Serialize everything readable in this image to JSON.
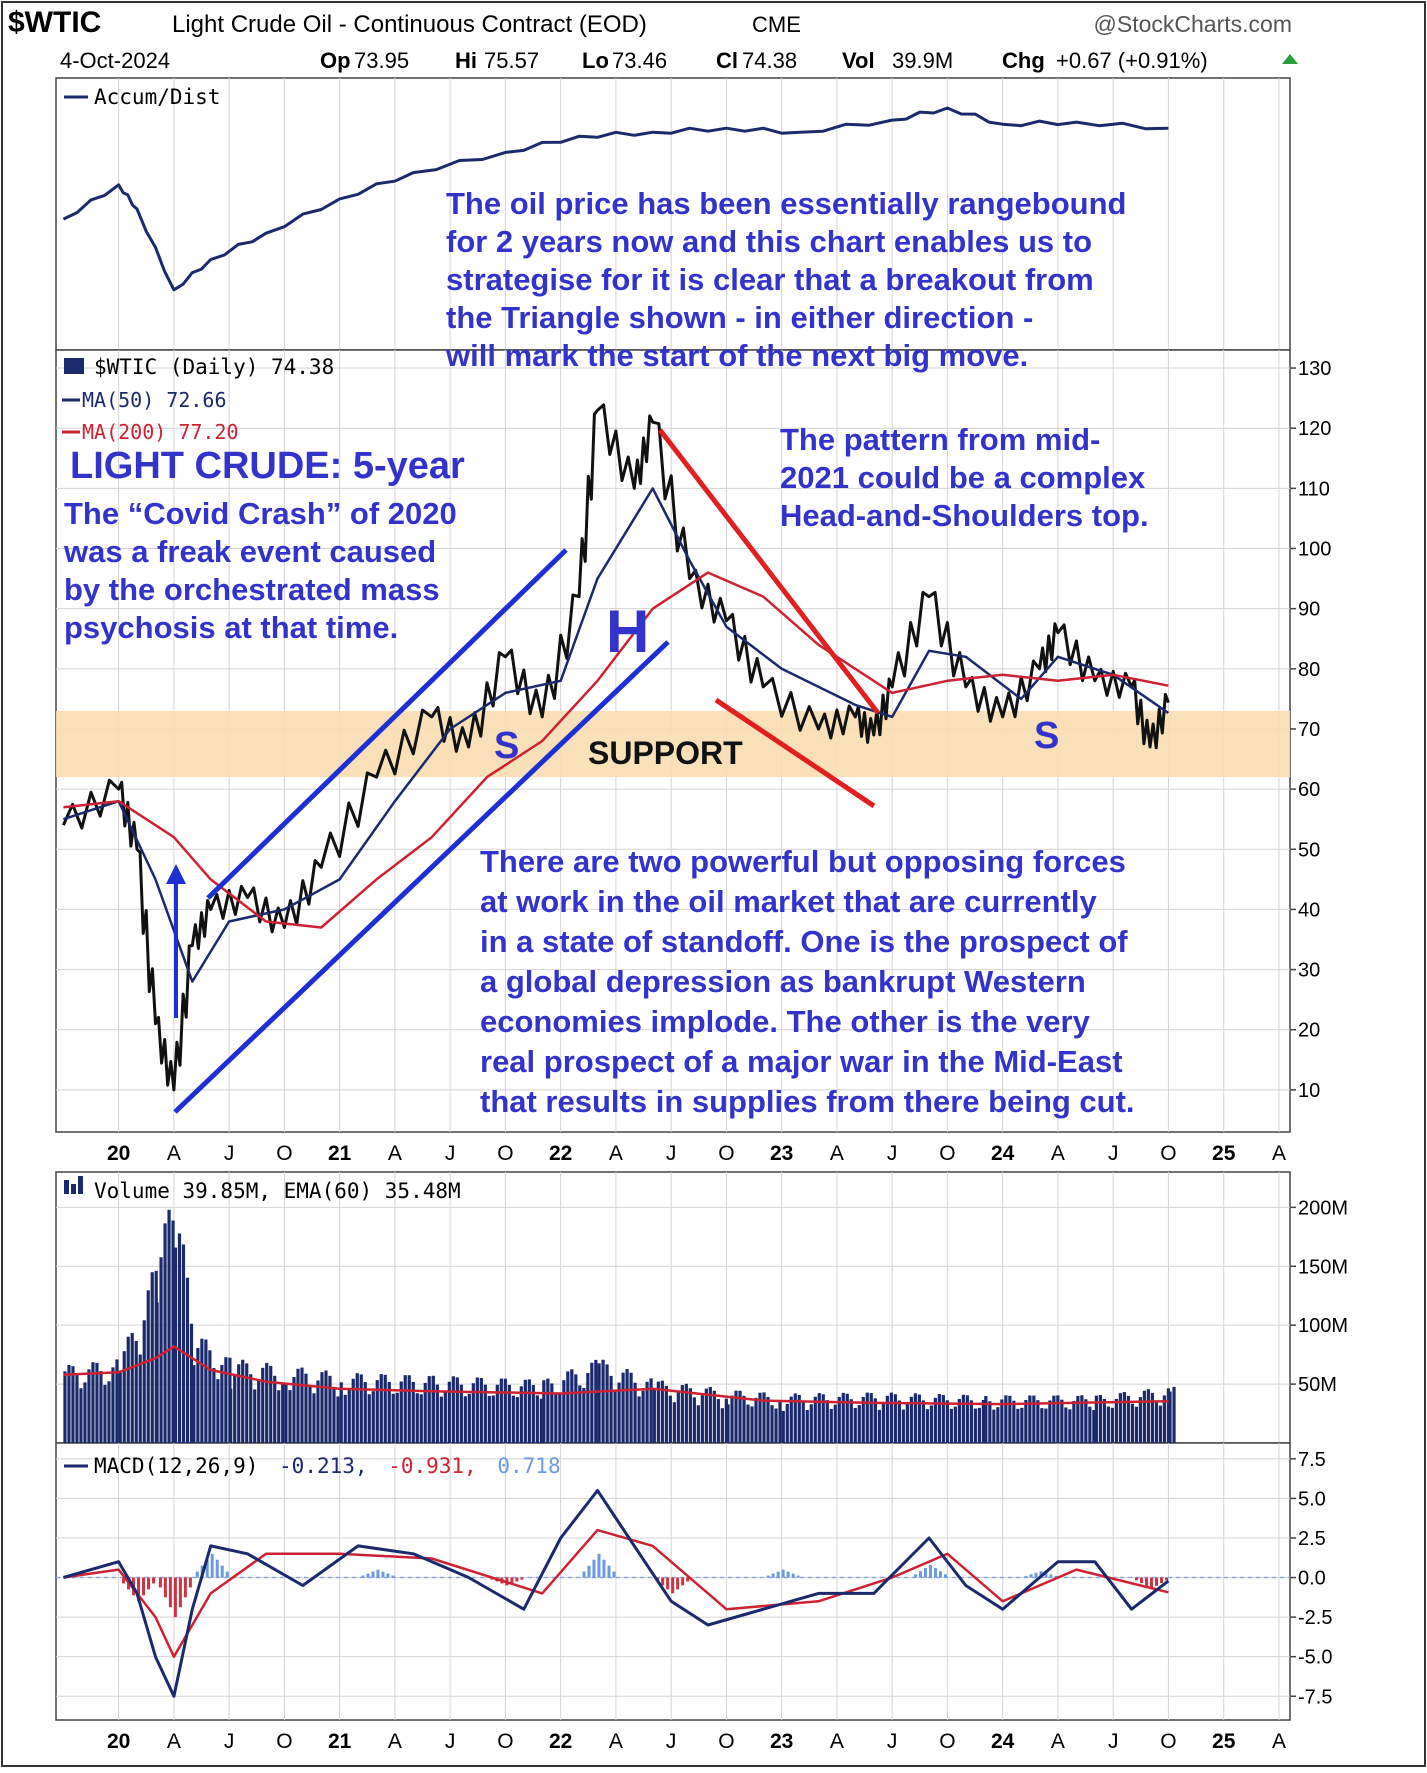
{
  "header": {
    "symbol": "$WTIC",
    "title": "Light Crude Oil - Continuous Contract (EOD)",
    "exchange": "CME",
    "source": "@StockCharts.com",
    "date": "4-Oct-2024",
    "op_label": "Op",
    "op": "73.95",
    "hi_label": "Hi",
    "hi": "75.57",
    "lo_label": "Lo",
    "lo": "73.46",
    "cl_label": "Cl",
    "cl": "74.38",
    "vol_label": "Vol",
    "vol": "39.9M",
    "chg_label": "Chg",
    "chg": "+0.67 (+0.91%)"
  },
  "colors": {
    "navy": "#1a2a6c",
    "red": "#cc2233",
    "annotation": "#3333cc",
    "support_band": "#f9ddb0",
    "trend_blue": "#1f2fd6",
    "trend_red": "#e02020"
  },
  "legends": {
    "accum": "Accum/Dist",
    "price": "$WTIC (Daily) 74.38",
    "ma50": "MA(50) 72.66",
    "ma200": "MA(200) 77.20",
    "volume": "Volume 39.85M, EMA(60) 35.48M",
    "macd_prefix": "MACD(12,26,9)",
    "macd_v1": "-0.213,",
    "macd_v2": "-0.931,",
    "macd_v3": "0.718"
  },
  "annotations": {
    "top_box": [
      "The oil price has been essentially rangebound",
      "for 2 years now and this chart enables us to",
      "strategise for it is clear that a breakout from",
      "the Triangle shown - in either direction -",
      "will mark the start of the next big move."
    ],
    "light_crude": "LIGHT CRUDE: 5-year",
    "covid": [
      "The “Covid Crash” of 2020",
      "was a freak event caused",
      "by the orchestrated mass",
      "psychosis at that time."
    ],
    "pattern": [
      "The pattern from mid-",
      "2021 could be a complex",
      "Head-and-Shoulders top."
    ],
    "forces": [
      "There are two powerful but opposing forces",
      "at work in the oil market that are currently",
      "in a state of standoff. One is the prospect of",
      "a global depression as bankrupt Western",
      "economies implode. The other is the very",
      "real prospect of a major war in the Mid-East",
      "that results in supplies from there being cut."
    ],
    "h": "H",
    "s_left": "S",
    "s_right": "S",
    "support": "SUPPORT"
  },
  "chart_data": [
    {
      "type": "line",
      "panel": "accumulation-distribution",
      "series": [
        {
          "name": "Accum/Dist",
          "x": [
            "2019-10",
            "2020-01",
            "2020-02",
            "2020-04",
            "2020-06",
            "2020-09",
            "2021-01",
            "2021-05",
            "2021-10",
            "2022-02",
            "2022-06",
            "2022-10",
            "2023-02",
            "2023-07",
            "2023-10",
            "2024-01",
            "2024-05",
            "2024-10"
          ],
          "values": [
            0.45,
            0.62,
            0.5,
            0.1,
            0.25,
            0.38,
            0.55,
            0.68,
            0.78,
            0.86,
            0.88,
            0.9,
            0.88,
            0.94,
            1.0,
            0.92,
            0.93,
            0.9
          ]
        }
      ]
    },
    {
      "type": "line",
      "panel": "price",
      "x_ticks": [
        "20",
        "A",
        "J",
        "O",
        "21",
        "A",
        "J",
        "O",
        "22",
        "A",
        "J",
        "O",
        "23",
        "A",
        "J",
        "O",
        "24",
        "A",
        "J",
        "O",
        "25",
        "A"
      ],
      "y_ticks": [
        130,
        120,
        110,
        100,
        90,
        80,
        70,
        60,
        50,
        40,
        30,
        20,
        10
      ],
      "ylim": [
        3,
        133
      ],
      "support_band": [
        62,
        73
      ],
      "series": [
        {
          "name": "$WTIC",
          "x": [
            "2019-10",
            "2020-01",
            "2020-02",
            "2020-03",
            "2020-04",
            "2020-05",
            "2020-06",
            "2020-08",
            "2020-10",
            "2020-12",
            "2021-03",
            "2021-06",
            "2021-08",
            "2021-10",
            "2021-12",
            "2022-02",
            "2022-03",
            "2022-05",
            "2022-06",
            "2022-08",
            "2022-10",
            "2022-12",
            "2023-03",
            "2023-05",
            "2023-06",
            "2023-07",
            "2023-09",
            "2023-11",
            "2024-01",
            "2024-03",
            "2024-04",
            "2024-06",
            "2024-08",
            "2024-09",
            "2024-10"
          ],
          "values": [
            54,
            60,
            50,
            21,
            10,
            34,
            40,
            42,
            37,
            47,
            62,
            72,
            67,
            82,
            72,
            92,
            123,
            110,
            121,
            95,
            88,
            77,
            70,
            72,
            69,
            77,
            92,
            77,
            72,
            80,
            86,
            78,
            77,
            67,
            74.38
          ]
        },
        {
          "name": "MA(50) 72.66",
          "x": [
            "2019-10",
            "2020-01",
            "2020-03",
            "2020-05",
            "2020-07",
            "2020-10",
            "2021-01",
            "2021-04",
            "2021-07",
            "2021-10",
            "2022-01",
            "2022-03",
            "2022-06",
            "2022-08",
            "2022-10",
            "2023-01",
            "2023-05",
            "2023-07",
            "2023-09",
            "2023-11",
            "2024-02",
            "2024-04",
            "2024-07",
            "2024-10"
          ],
          "values": [
            55,
            58,
            45,
            28,
            38,
            40,
            45,
            58,
            70,
            76,
            78,
            95,
            110,
            98,
            87,
            80,
            74,
            72,
            83,
            82,
            75,
            82,
            79,
            72.66
          ]
        },
        {
          "name": "MA(200) 77.20",
          "x": [
            "2019-10",
            "2020-01",
            "2020-04",
            "2020-06",
            "2020-09",
            "2020-12",
            "2021-03",
            "2021-06",
            "2021-09",
            "2021-12",
            "2022-03",
            "2022-06",
            "2022-09",
            "2022-12",
            "2023-03",
            "2023-07",
            "2023-10",
            "2024-01",
            "2024-04",
            "2024-07",
            "2024-10"
          ],
          "values": [
            57,
            58,
            52,
            45,
            38,
            37,
            45,
            52,
            62,
            68,
            78,
            90,
            96,
            92,
            84,
            76,
            78,
            79,
            78,
            79,
            77.2
          ]
        }
      ]
    },
    {
      "type": "bar",
      "panel": "volume",
      "y_ticks": [
        "200M",
        "150M",
        "100M",
        "50M"
      ],
      "ylim": [
        0,
        230
      ],
      "series": [
        {
          "name": "Volume",
          "x": [
            "2019-10",
            "2020-01",
            "2020-03",
            "2020-04",
            "2020-05",
            "2020-07",
            "2020-10",
            "2021-01",
            "2021-06",
            "2021-12",
            "2022-03",
            "2022-06",
            "2022-10",
            "2023-01",
            "2023-06",
            "2023-12",
            "2024-06",
            "2024-10"
          ],
          "values": [
            55,
            60,
            130,
            190,
            80,
            60,
            55,
            50,
            48,
            45,
            60,
            45,
            38,
            35,
            36,
            34,
            34,
            40
          ]
        },
        {
          "name": "EMA(60)",
          "x": [
            "2019-10",
            "2020-01",
            "2020-03",
            "2020-04",
            "2020-06",
            "2020-09",
            "2021-01",
            "2021-06",
            "2022-01",
            "2022-06",
            "2022-12",
            "2023-06",
            "2024-01",
            "2024-10"
          ],
          "values": [
            58,
            60,
            72,
            82,
            62,
            52,
            46,
            44,
            42,
            46,
            36,
            34,
            33,
            35.48
          ]
        }
      ]
    },
    {
      "type": "line",
      "panel": "macd",
      "y_ticks": [
        "7.5",
        "5.0",
        "2.5",
        "0.0",
        "-2.5",
        "-5.0",
        "-7.5"
      ],
      "ylim": [
        -9,
        8.5
      ],
      "series": [
        {
          "name": "MACD",
          "x": [
            "2019-10",
            "2020-01",
            "2020-02",
            "2020-03",
            "2020-04",
            "2020-05",
            "2020-06",
            "2020-08",
            "2020-11",
            "2021-02",
            "2021-05",
            "2021-08",
            "2021-11",
            "2022-01",
            "2022-03",
            "2022-05",
            "2022-07",
            "2022-09",
            "2022-12",
            "2023-03",
            "2023-06",
            "2023-09",
            "2023-11",
            "2024-01",
            "2024-04",
            "2024-06",
            "2024-08",
            "2024-10"
          ],
          "values": [
            0,
            1,
            -1,
            -5,
            -7.5,
            -2,
            2,
            1.5,
            -0.5,
            2,
            1.5,
            0,
            -2,
            2.5,
            5.5,
            2,
            -1.5,
            -3,
            -2,
            -1,
            -1,
            2.5,
            -0.5,
            -2,
            1,
            1,
            -2,
            -0.213
          ]
        },
        {
          "name": "Signal",
          "x": [
            "2019-10",
            "2020-01",
            "2020-03",
            "2020-04",
            "2020-06",
            "2020-09",
            "2021-01",
            "2021-06",
            "2021-12",
            "2022-03",
            "2022-06",
            "2022-10",
            "2023-03",
            "2023-07",
            "2023-10",
            "2024-01",
            "2024-05",
            "2024-10"
          ],
          "values": [
            0,
            0.5,
            -2.5,
            -5,
            -1,
            1.5,
            1.5,
            1.2,
            -1,
            3,
            2,
            -2,
            -1.5,
            0,
            1.5,
            -1.5,
            0.5,
            -0.931
          ]
        },
        {
          "name": "Histogram",
          "x": [
            "2020-02",
            "2020-04",
            "2020-06",
            "2021-03",
            "2021-10",
            "2022-03",
            "2022-07",
            "2023-01",
            "2023-09",
            "2024-03",
            "2024-09"
          ],
          "values": [
            -1.5,
            -2.5,
            1.5,
            0.5,
            -0.5,
            1.5,
            -1,
            0.5,
            0.8,
            0.4,
            -0.7
          ]
        }
      ]
    }
  ]
}
